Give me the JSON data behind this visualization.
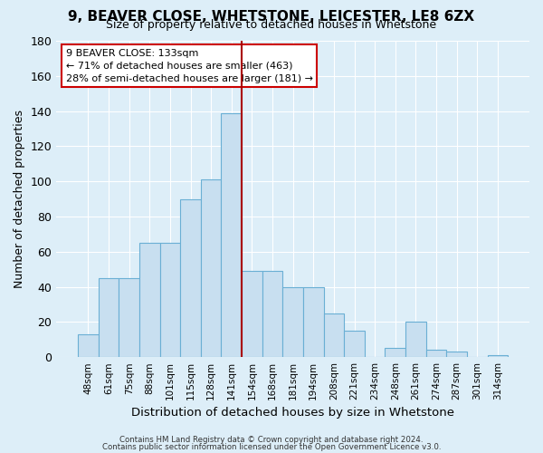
{
  "title": "9, BEAVER CLOSE, WHETSTONE, LEICESTER, LE8 6ZX",
  "subtitle": "Size of property relative to detached houses in Whetstone",
  "xlabel": "Distribution of detached houses by size in Whetstone",
  "ylabel": "Number of detached properties",
  "bar_labels": [
    "48sqm",
    "61sqm",
    "75sqm",
    "88sqm",
    "101sqm",
    "115sqm",
    "128sqm",
    "141sqm",
    "154sqm",
    "168sqm",
    "181sqm",
    "194sqm",
    "208sqm",
    "221sqm",
    "234sqm",
    "248sqm",
    "261sqm",
    "274sqm",
    "287sqm",
    "301sqm",
    "314sqm"
  ],
  "bar_values": [
    13,
    45,
    45,
    65,
    65,
    90,
    101,
    139,
    49,
    49,
    40,
    40,
    25,
    15,
    0,
    5,
    20,
    4,
    3,
    0,
    1
  ],
  "bar_color": "#c8dff0",
  "bar_edge_color": "#6aafd4",
  "vline_x_idx": 7.5,
  "vline_color": "#aa0000",
  "ylim": [
    0,
    180
  ],
  "yticks": [
    0,
    20,
    40,
    60,
    80,
    100,
    120,
    140,
    160,
    180
  ],
  "annotation_title": "9 BEAVER CLOSE: 133sqm",
  "annotation_line1": "← 71% of detached houses are smaller (463)",
  "annotation_line2": "28% of semi-detached houses are larger (181) →",
  "annotation_box_facecolor": "#ffffff",
  "annotation_box_edgecolor": "#cc0000",
  "footer1": "Contains HM Land Registry data © Crown copyright and database right 2024.",
  "footer2": "Contains public sector information licensed under the Open Government Licence v3.0.",
  "bg_color": "#ddeef8",
  "plot_bg_color": "#ddeef8",
  "grid_color": "#ffffff",
  "title_fontsize": 11,
  "subtitle_fontsize": 9
}
